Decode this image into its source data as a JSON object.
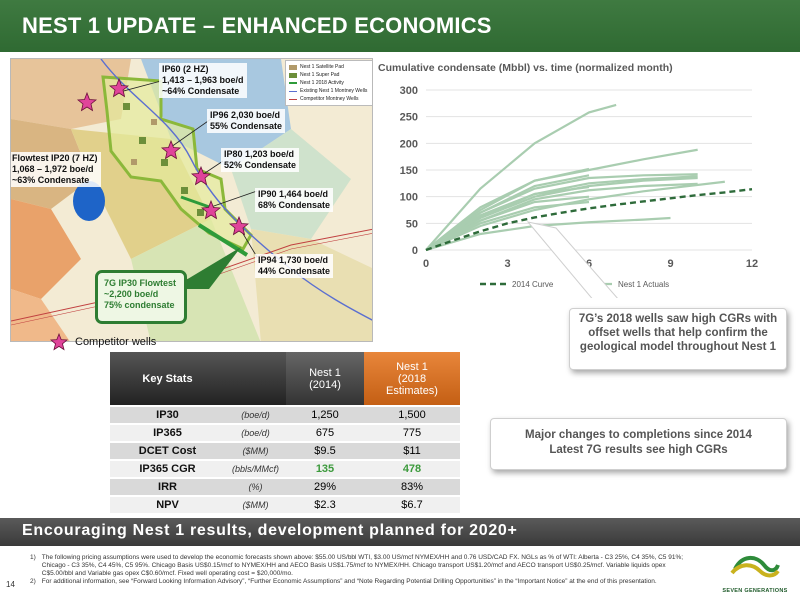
{
  "header": {
    "title": "NEST 1 UPDATE – ENHANCED ECONOMICS"
  },
  "map": {
    "callouts": [
      {
        "lines": [
          "IP60 (2 HZ)",
          "1,413 – 1,963 boe/d",
          "~64% Condensate"
        ]
      },
      {
        "lines": [
          "IP96 2,030  boe/d",
          "55% Condensate"
        ]
      },
      {
        "lines": [
          "Flowtest IP20 (7 HZ)",
          "1,068 – 1,972 boe/d",
          "~63% Condensate"
        ]
      },
      {
        "lines": [
          "IP80 1,203 boe/d",
          "52% Condensate"
        ]
      },
      {
        "lines": [
          "IP90 1,464 boe/d",
          "68% Condensate"
        ]
      },
      {
        "lines": [
          "IP94 1,730 boe/d",
          "44% Condensate"
        ]
      }
    ],
    "legend": [
      "Nest 1 Satellite Pad",
      "Nest 1 Super Pad",
      "Nest 1 2018 Activity",
      "Existing Nest 1 Montney Wells",
      "Competitor Montney Wells"
    ],
    "flowtest_box": {
      "lines": [
        "7G IP30 Flowtest",
        "~2,200 boe/d",
        "75% condensate"
      ]
    },
    "competitor_legend": "Competitor wells"
  },
  "chart_data": {
    "type": "line",
    "title": "Cumulative condensate (Mbbl) vs. time (normalized month)",
    "xlabel": "",
    "ylabel": "",
    "xlim": [
      0,
      12
    ],
    "ylim": [
      0,
      300
    ],
    "xticks": [
      0,
      3,
      6,
      9,
      12
    ],
    "yticks": [
      0,
      50,
      100,
      150,
      200,
      250,
      300
    ],
    "grid": true,
    "legend_position": "bottom",
    "series": [
      {
        "name": "2014 Curve",
        "style": "dashed",
        "color": "#2e6b3a",
        "x": [
          0,
          1,
          2,
          3,
          4,
          5,
          6,
          7,
          8,
          9,
          10,
          11,
          12
        ],
        "y": [
          0,
          18,
          35,
          50,
          61,
          70,
          78,
          85,
          91,
          97,
          103,
          108,
          114
        ]
      },
      {
        "name": "Nest 1 Actuals",
        "style": "solid",
        "color": "#a9cdb0",
        "lines": [
          {
            "x": [
              0,
              2,
              4,
              6,
              7
            ],
            "y": [
              0,
              115,
              200,
              258,
              272
            ]
          },
          {
            "x": [
              0,
              2,
              4,
              6,
              8,
              10
            ],
            "y": [
              0,
              80,
              130,
              150,
              170,
              188
            ]
          },
          {
            "x": [
              0,
              2,
              4,
              6,
              8,
              10
            ],
            "y": [
              0,
              70,
              115,
              135,
              140,
              142
            ]
          },
          {
            "x": [
              0,
              2,
              4,
              6,
              8,
              10
            ],
            "y": [
              0,
              65,
              105,
              125,
              133,
              138
            ]
          },
          {
            "x": [
              0,
              2,
              4,
              6,
              8,
              10
            ],
            "y": [
              0,
              60,
              100,
              120,
              130,
              135
            ]
          },
          {
            "x": [
              0,
              2,
              4,
              6,
              8,
              10
            ],
            "y": [
              0,
              55,
              95,
              112,
              120,
              124
            ]
          },
          {
            "x": [
              0,
              2,
              4,
              6
            ],
            "y": [
              0,
              75,
              130,
              152
            ]
          },
          {
            "x": [
              0,
              2,
              4,
              6
            ],
            "y": [
              0,
              70,
              120,
              140
            ]
          },
          {
            "x": [
              0,
              2,
              4,
              6
            ],
            "y": [
              0,
              62,
              105,
              118
            ]
          },
          {
            "x": [
              0,
              2,
              4,
              6
            ],
            "y": [
              0,
              55,
              90,
              100
            ]
          },
          {
            "x": [
              0,
              2,
              4,
              6
            ],
            "y": [
              0,
              50,
              80,
              90
            ]
          },
          {
            "x": [
              0,
              2,
              4,
              6,
              8,
              11
            ],
            "y": [
              0,
              45,
              75,
              95,
              110,
              128
            ]
          },
          {
            "x": [
              0,
              2,
              4,
              6,
              8,
              9
            ],
            "y": [
              0,
              30,
              45,
              52,
              57,
              60
            ]
          }
        ]
      }
    ]
  },
  "table": {
    "headers": {
      "key": "Key Stats",
      "col_a": [
        "Nest 1",
        "(2014)"
      ],
      "col_b": [
        "Nest 1",
        "(2018",
        "Estimates)"
      ]
    },
    "rows": [
      {
        "key": "IP30",
        "unit": "(boe/d)",
        "a": "1,250",
        "b": "1,500"
      },
      {
        "key": "IP365",
        "unit": "(boe/d)",
        "a": "675",
        "b": "775"
      },
      {
        "key": "DCET Cost",
        "unit": "($MM)",
        "a": "$9.5",
        "b": "$11"
      },
      {
        "key": "IP365 CGR",
        "unit": "(bbls/MMcf)",
        "a": "135",
        "b": "478"
      },
      {
        "key": "IRR",
        "unit": "(%)",
        "a": "29%",
        "b": "83%"
      },
      {
        "key": "NPV",
        "unit": "($MM)",
        "a": "$2.3",
        "b": "$6.7"
      }
    ]
  },
  "notes": {
    "note1": "7G’s 2018 wells saw high CGRs with offset wells that help confirm the geological model throughout Nest 1",
    "note2_line1": "Major changes to completions since 2014",
    "note2_line2": "Latest 7G results see high CGRs"
  },
  "bottom_bar": "Encouraging Nest 1 results, development planned for 2020+",
  "footnotes": [
    {
      "num": "1)",
      "text": "The following pricing assumptions were used to develop the economic forecasts shown above: $55.00 US/bbl WTI, $3.00 US/mcf NYMEX/HH and 0.76 USD/CAD FX. NGLs as % of WTI: Alberta - C3 25%, C4 35%, C5 91%; Chicago - C3 35%, C4 45%, C5 95%. Chicago Basis US$0.15/mcf to NYMEX/HH and AECO Basis US$1.75/mcf to NYMEX/HH. Chicago transport US$1.20/mcf and AECO transport US$0.25/mcf. Variable liquids opex C$5.00/bbl and Variable gas opex C$0.60/mcf. Fixed well operating cost = $20,000/mo."
    },
    {
      "num": "2)",
      "text": "For additional information, see “Forward Looking Information Advisory”, “Further Economic Assumptions” and “Note Regarding Potential Drilling Opportunities” in the “Important Notice” at the end of this presentation."
    }
  ],
  "page_number": "14",
  "logo_text": "SEVEN GENERATIONS",
  "colors": {
    "brand_green": "#2f6a32",
    "orange": "#e07b2e",
    "star_pink": "#e0449a"
  }
}
